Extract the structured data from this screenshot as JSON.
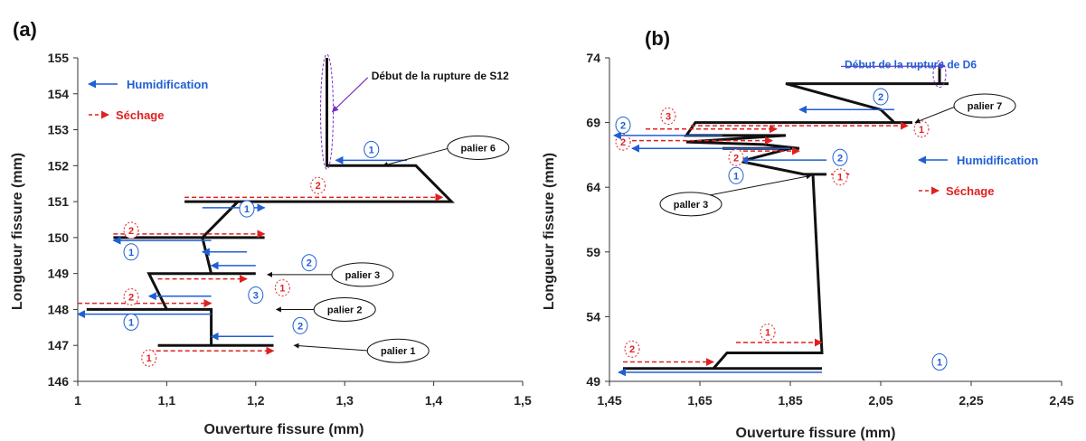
{
  "colors": {
    "path": "#111111",
    "humid": "#1f5fd6",
    "dry": "#e02020",
    "annot": "#7b2fbf"
  },
  "chart_data": [
    {
      "type": "line",
      "panel_label": "(a)",
      "xlabel": "Ouverture fissure (mm)",
      "ylabel": "Longueur fissure (mm)",
      "xlim": [
        1,
        1.5
      ],
      "ylim": [
        146,
        155
      ],
      "x_ticks": [
        "1",
        "1,1",
        "1,2",
        "1,3",
        "1,4",
        "1,5"
      ],
      "x_tick_values": [
        1,
        1.1,
        1.2,
        1.3,
        1.4,
        1.5
      ],
      "y_ticks": [
        "146",
        "147",
        "148",
        "149",
        "150",
        "151",
        "152",
        "153",
        "154",
        "155"
      ],
      "y_tick_values": [
        146,
        147,
        148,
        149,
        150,
        151,
        152,
        153,
        154,
        155
      ],
      "crack_path": [
        [
          1.22,
          147
        ],
        [
          1.09,
          147
        ],
        [
          1.15,
          147
        ],
        [
          1.15,
          148
        ],
        [
          1.01,
          148
        ],
        [
          1.15,
          148
        ],
        [
          1.15,
          148
        ],
        [
          1.1,
          148
        ],
        [
          1.08,
          149
        ],
        [
          1.2,
          149
        ],
        [
          1.15,
          149
        ],
        [
          1.15,
          149
        ],
        [
          1.14,
          150
        ],
        [
          1.04,
          150
        ],
        [
          1.21,
          150
        ],
        [
          1.14,
          150
        ],
        [
          1.18,
          151
        ],
        [
          1.12,
          151
        ],
        [
          1.42,
          151
        ],
        [
          1.38,
          152
        ],
        [
          1.28,
          152
        ],
        [
          1.28,
          155
        ]
      ],
      "arrows": [
        {
          "x1": 1.08,
          "x2": 1.22,
          "y": 146.85,
          "kind": "dry",
          "label": "1"
        },
        {
          "x1": 1.22,
          "x2": 1.15,
          "y": 147.25,
          "kind": "humid",
          "label": "2"
        },
        {
          "x1": 1.15,
          "x2": 1.0,
          "y": 147.87,
          "kind": "humid",
          "label": "1"
        },
        {
          "x1": 1.0,
          "x2": 1.15,
          "y": 148.17,
          "kind": "dry",
          "label": "2"
        },
        {
          "x1": 1.15,
          "x2": 1.08,
          "y": 148.37,
          "kind": "humid",
          "label": "3"
        },
        {
          "x1": 1.09,
          "x2": 1.19,
          "y": 148.85,
          "kind": "dry",
          "label": "1"
        },
        {
          "x1": 1.2,
          "x2": 1.15,
          "y": 149.22,
          "kind": "humid",
          "label": "2"
        },
        {
          "x1": 1.19,
          "x2": 1.14,
          "y": 149.6,
          "kind": "humid",
          "label": ""
        },
        {
          "x1": 1.15,
          "x2": 1.04,
          "y": 149.92,
          "kind": "humid",
          "label": "1"
        },
        {
          "x1": 1.04,
          "x2": 1.21,
          "y": 150.1,
          "kind": "dry",
          "label": "2"
        },
        {
          "x1": 1.14,
          "x2": 1.21,
          "y": 150.83,
          "kind": "humid",
          "label": "1"
        },
        {
          "x1": 1.12,
          "x2": 1.41,
          "y": 151.12,
          "kind": "dry",
          "label": "2"
        },
        {
          "x1": 1.37,
          "x2": 1.29,
          "y": 152.15,
          "kind": "humid",
          "label": "1"
        }
      ],
      "label_positions": [
        [
          1.08,
          146.65
        ],
        [
          1.25,
          147.55
        ],
        [
          1.06,
          147.65
        ],
        [
          1.06,
          148.35
        ],
        [
          1.2,
          148.4
        ],
        [
          1.23,
          148.6
        ],
        [
          1.26,
          149.3
        ],
        [
          1.18,
          149.6
        ],
        [
          1.06,
          149.6
        ],
        [
          1.06,
          150.2
        ],
        [
          1.19,
          150.8
        ],
        [
          1.27,
          151.45
        ],
        [
          1.33,
          152.45
        ]
      ],
      "callouts": [
        {
          "text": "palier 1",
          "ex": 1.36,
          "ey": 146.85,
          "tx": 1.24,
          "ty": 147.0
        },
        {
          "text": "palier 2",
          "ex": 1.3,
          "ey": 148.0,
          "tx": 1.22,
          "ty": 148.0
        },
        {
          "text": "palier 3",
          "ex": 1.32,
          "ey": 148.97,
          "tx": 1.21,
          "ty": 148.97
        },
        {
          "text": "palier 6",
          "ex": 1.45,
          "ey": 152.5,
          "tx": 1.34,
          "ty": 152.0
        }
      ],
      "legend": {
        "humid": "Humidification",
        "dry": "Séchage"
      },
      "note": {
        "text": "Début de la rupture de S12",
        "x": 1.33,
        "y": 154.4
      },
      "ellipse": {
        "x": 1.28,
        "y1": 152,
        "y2": 155
      }
    },
    {
      "type": "line",
      "panel_label": "(b)",
      "xlabel": "Ouverture fissure (mm)",
      "ylabel": "Longueur fissure (mm)",
      "xlim": [
        1.45,
        2.45
      ],
      "ylim": [
        49,
        74
      ],
      "x_ticks": [
        "1,45",
        "1,65",
        "1,85",
        "2,05",
        "2,25",
        "2,45"
      ],
      "x_tick_values": [
        1.45,
        1.65,
        1.85,
        2.05,
        2.25,
        2.45
      ],
      "y_ticks": [
        "49",
        "54",
        "59",
        "64",
        "69",
        "74"
      ],
      "y_tick_values": [
        49,
        54,
        59,
        64,
        69,
        74
      ],
      "crack_path": [
        [
          1.92,
          50
        ],
        [
          1.48,
          50
        ],
        [
          1.68,
          50
        ],
        [
          1.71,
          51.2
        ],
        [
          1.92,
          51.2
        ],
        [
          1.9,
          65
        ],
        [
          1.93,
          65
        ],
        [
          1.88,
          65
        ],
        [
          1.74,
          66
        ],
        [
          1.85,
          67
        ],
        [
          1.7,
          67
        ],
        [
          1.87,
          67
        ],
        [
          1.79,
          67.3
        ],
        [
          1.62,
          67.5
        ],
        [
          1.84,
          68
        ],
        [
          1.62,
          68
        ],
        [
          1.64,
          69
        ],
        [
          1.87,
          69
        ],
        [
          2.12,
          69
        ],
        [
          2.08,
          69
        ],
        [
          2.05,
          70
        ],
        [
          1.84,
          72
        ],
        [
          2.2,
          72
        ],
        [
          2.18,
          72
        ],
        [
          2.18,
          73.5
        ]
      ],
      "arrows": [
        {
          "x1": 1.48,
          "x2": 1.68,
          "y": 50.5,
          "kind": "dry",
          "label": "2"
        },
        {
          "x1": 1.92,
          "x2": 1.47,
          "y": 49.7,
          "kind": "humid",
          "label": "1"
        },
        {
          "x1": 1.73,
          "x2": 1.92,
          "y": 52.0,
          "kind": "dry",
          "label": "1"
        },
        {
          "x1": 1.93,
          "x2": 1.74,
          "y": 66.1,
          "kind": "humid",
          "label": "2"
        },
        {
          "x1": 1.94,
          "x2": 1.98,
          "y": 65.0,
          "kind": "dry",
          "label": "1"
        },
        {
          "x1": 1.73,
          "x2": 1.87,
          "y": 66.8,
          "kind": "dry",
          "label": "2"
        },
        {
          "x1": 1.85,
          "x2": 1.5,
          "y": 67.0,
          "kind": "humid",
          "label": "1"
        },
        {
          "x1": 1.5,
          "x2": 1.81,
          "y": 67.6,
          "kind": "dry",
          "label": "2"
        },
        {
          "x1": 1.7,
          "x2": 1.46,
          "y": 68.0,
          "kind": "humid",
          "label": "2"
        },
        {
          "x1": 1.53,
          "x2": 1.82,
          "y": 68.5,
          "kind": "dry",
          "label": "3"
        },
        {
          "x1": 1.63,
          "x2": 2.11,
          "y": 68.75,
          "kind": "dry",
          "label": "1"
        },
        {
          "x1": 2.08,
          "x2": 1.87,
          "y": 70.0,
          "kind": "humid",
          "label": "2"
        }
      ],
      "label_positions": [
        [
          1.5,
          51.5
        ],
        [
          2.18,
          50.5
        ],
        [
          1.8,
          52.8
        ],
        [
          1.96,
          66.3
        ],
        [
          1.96,
          64.8
        ],
        [
          1.73,
          66.3
        ],
        [
          1.73,
          64.9
        ],
        [
          1.48,
          67.5
        ],
        [
          1.48,
          68.8
        ],
        [
          1.58,
          69.5
        ],
        [
          2.14,
          68.5
        ],
        [
          2.05,
          71.0
        ]
      ],
      "callouts": [
        {
          "text": "paller 3",
          "ex": 1.63,
          "ey": 62.7,
          "tx": 1.89,
          "ty": 64.9
        },
        {
          "text": "palier 7",
          "ex": 2.28,
          "ey": 70.3,
          "tx": 2.12,
          "ty": 69.0
        }
      ],
      "legend": {
        "humid": "Humidification",
        "dry": "Séchage"
      },
      "note": {
        "text": "Début de la rupture de D6",
        "x": 1.97,
        "y": 73.2
      },
      "ellipse": {
        "x": 2.18,
        "y1": 72,
        "y2": 73.5
      }
    }
  ]
}
